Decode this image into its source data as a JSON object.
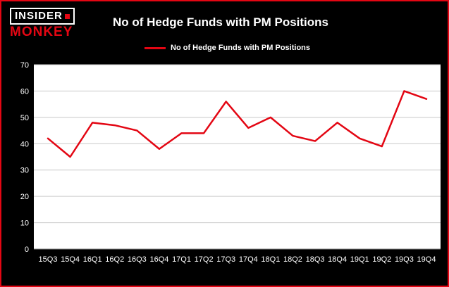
{
  "header": {
    "logo_line1": "INSIDER",
    "logo_line2": "MONKEY",
    "title": "No of Hedge Funds with PM Positions"
  },
  "legend": {
    "label": "No of Hedge Funds with PM Positions"
  },
  "colors": {
    "line": "#e30613",
    "border": "#e30613",
    "background": "#000000",
    "plot_background": "#ffffff",
    "gridline": "#c9c9c9",
    "axis_text": "#ffffff"
  },
  "chart_data": {
    "type": "line",
    "title": "No of Hedge Funds with PM Positions",
    "legend": "No of Hedge Funds with PM Positions",
    "categories": [
      "15Q3",
      "15Q4",
      "16Q1",
      "16Q2",
      "16Q3",
      "16Q4",
      "17Q1",
      "17Q2",
      "17Q3",
      "17Q4",
      "18Q1",
      "18Q2",
      "18Q3",
      "18Q4",
      "19Q1",
      "19Q2",
      "19Q3",
      "19Q4"
    ],
    "values": [
      42,
      35,
      48,
      47,
      45,
      38,
      44,
      44,
      56,
      46,
      50,
      43,
      41,
      48,
      42,
      39,
      60,
      57
    ],
    "xlabel": "",
    "ylabel": "",
    "ylim": [
      0,
      70
    ],
    "ytick_step": 10,
    "grid": true,
    "legend_position": "top-left"
  }
}
